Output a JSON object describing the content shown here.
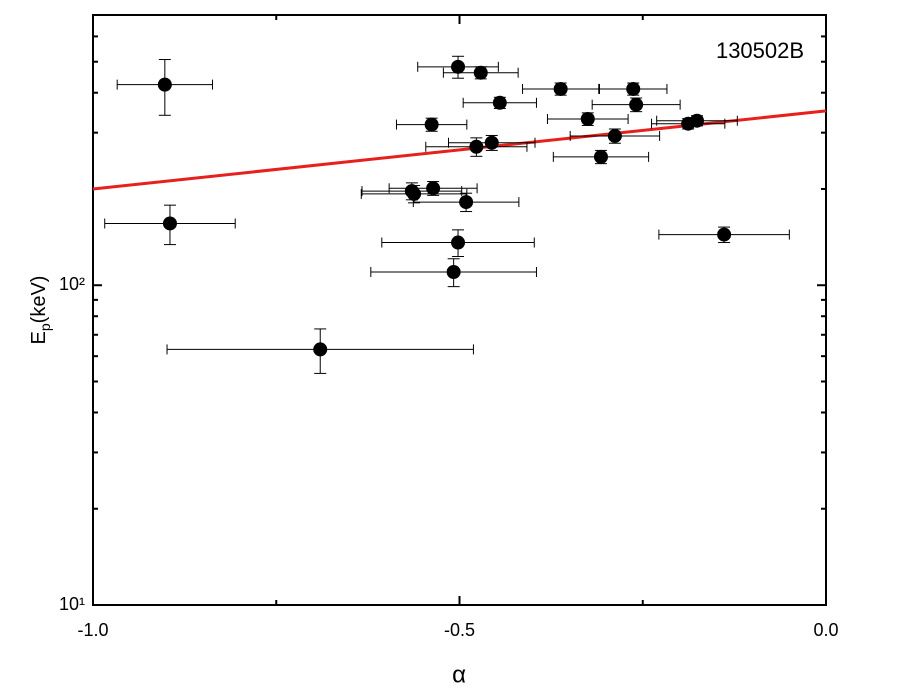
{
  "chart_data": {
    "type": "scatter",
    "annotation": "130502B",
    "xlabel": "α",
    "ylabel_parts": [
      "E",
      "p",
      "(keV)"
    ],
    "xlim": [
      -1.0,
      0.0
    ],
    "xticks": [
      {
        "value": -1.0,
        "label": "-1.0"
      },
      {
        "value": -0.5,
        "label": "-0.5"
      },
      {
        "value": 0.0,
        "label": "0.0"
      }
    ],
    "xminorticks": [
      -0.75,
      -0.25
    ],
    "ylim": [
      10,
      700
    ],
    "yticks": [
      {
        "value": 10,
        "label": "10¹"
      },
      {
        "value": 100,
        "label": "10²"
      }
    ],
    "yminorticks": [
      20,
      30,
      40,
      50,
      60,
      70,
      80,
      90,
      200,
      300,
      400,
      500,
      600
    ],
    "log_y": true,
    "series": [
      {
        "color": "#000000",
        "x": [
          -0.902,
          -0.895,
          -0.69,
          -0.502,
          -0.471,
          -0.445,
          -0.362,
          -0.263,
          -0.259,
          -0.325,
          -0.538,
          -0.288,
          -0.188,
          -0.176,
          -0.477,
          -0.456,
          -0.307,
          -0.565,
          -0.562,
          -0.536,
          -0.491,
          -0.502,
          -0.508,
          -0.139
        ],
        "values": [
          424,
          156,
          63,
          482,
          462,
          372,
          411,
          411,
          367,
          331,
          318,
          293,
          320,
          327,
          271,
          279,
          252,
          197,
          193,
          201,
          182,
          136,
          110,
          144
        ],
        "x_err": [
          0.065,
          0.089,
          0.209,
          0.055,
          0.051,
          0.05,
          0.052,
          0.046,
          0.06,
          0.055,
          0.048,
          0.061,
          0.05,
          0.055,
          0.069,
          0.059,
          0.065,
          0.068,
          0.072,
          0.06,
          0.072,
          0.104,
          0.113,
          0.089
        ],
        "y_err": [
          84,
          22,
          10,
          38,
          20,
          15,
          18,
          18,
          18,
          15,
          15,
          15,
          12,
          12,
          18,
          15,
          12,
          12,
          12,
          10,
          12,
          13,
          11,
          8
        ]
      }
    ],
    "fit": {
      "x": [
        -1.0,
        0.0
      ],
      "values": [
        200,
        351
      ],
      "color": "#e8201c"
    }
  }
}
